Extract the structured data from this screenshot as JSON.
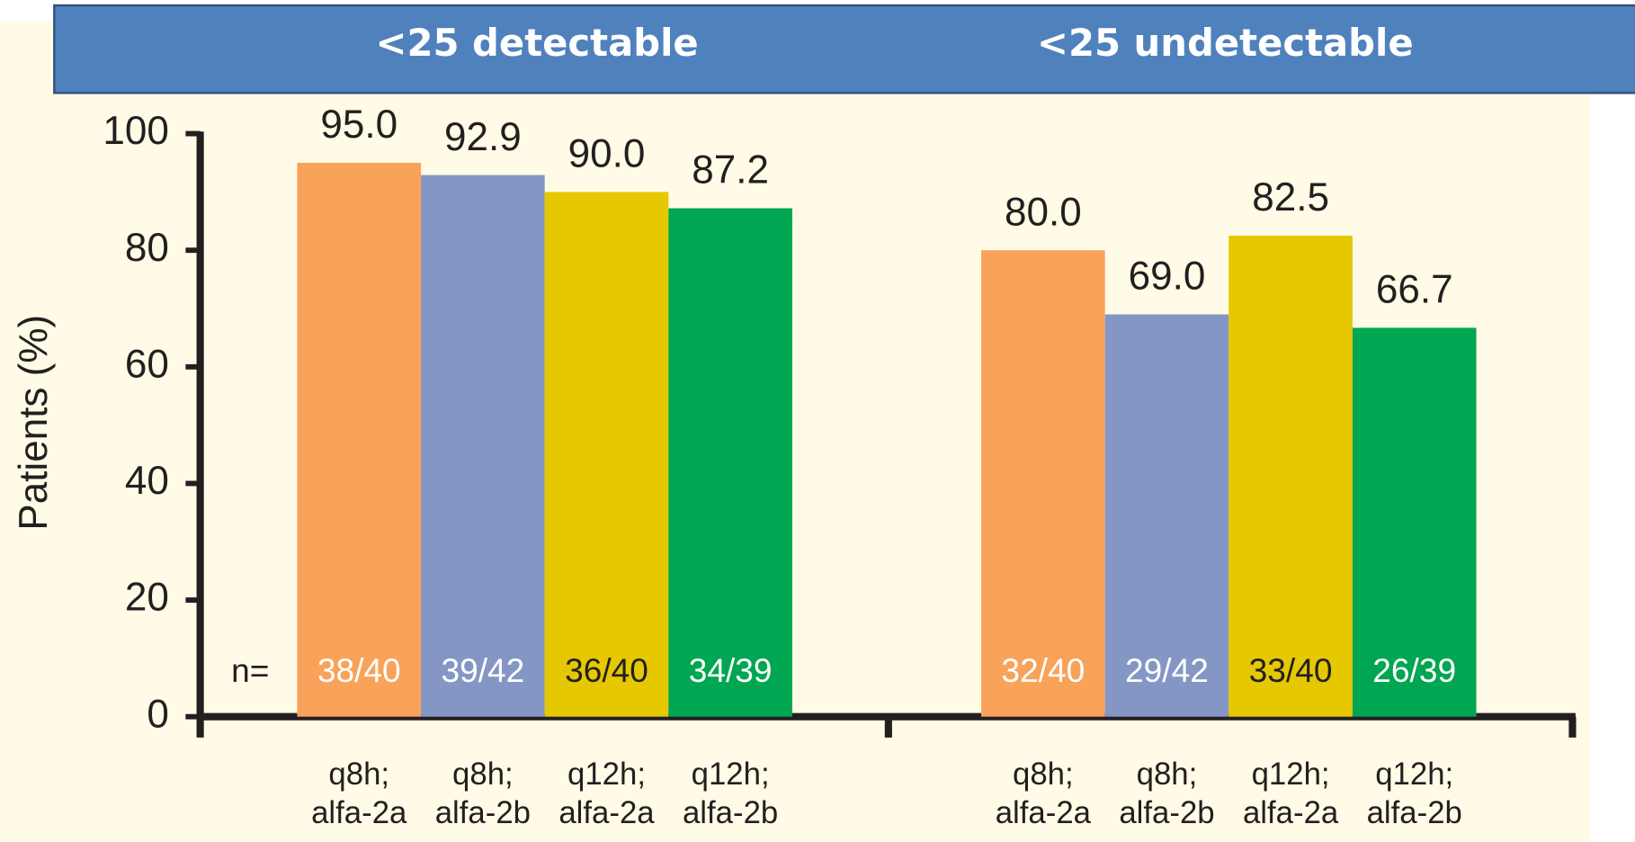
{
  "chart_data": {
    "type": "grouped_bar",
    "y_label": "Patients (%)",
    "groups": [
      "<25 detectable",
      "<25 undetectable"
    ],
    "n_label": "n=",
    "series": [
      {
        "name": [
          "q8h;",
          "alfa-2a"
        ],
        "color": "#f9a25a",
        "values": [
          95.0,
          80.0
        ],
        "value_labels": [
          "95.0",
          "80.0"
        ],
        "n_labels": [
          "38/40",
          "32/40"
        ],
        "n_color": "#ffffff"
      },
      {
        "name": [
          "q8h;",
          "alfa-2b"
        ],
        "color": "#8497c4",
        "values": [
          92.9,
          69.0
        ],
        "value_labels": [
          "92.9",
          "69.0"
        ],
        "n_labels": [
          "39/42",
          "29/42"
        ],
        "n_color": "#ffffff"
      },
      {
        "name": [
          "q12h;",
          "alfa-2a"
        ],
        "color": "#e6c800",
        "values": [
          90.0,
          82.5
        ],
        "value_labels": [
          "90.0",
          "82.5"
        ],
        "n_labels": [
          "36/40",
          "33/40"
        ],
        "n_color": "#231f20"
      },
      {
        "name": [
          "q12h;",
          "alfa-2b"
        ],
        "color": "#00a651",
        "values": [
          87.2,
          66.7
        ],
        "value_labels": [
          "87.2",
          "66.7"
        ],
        "n_labels": [
          "34/39",
          "26/39"
        ],
        "n_color": "#ffffff"
      }
    ],
    "ylim": [
      0,
      100
    ],
    "yticks": [
      0,
      20,
      40,
      60,
      80,
      100
    ]
  }
}
